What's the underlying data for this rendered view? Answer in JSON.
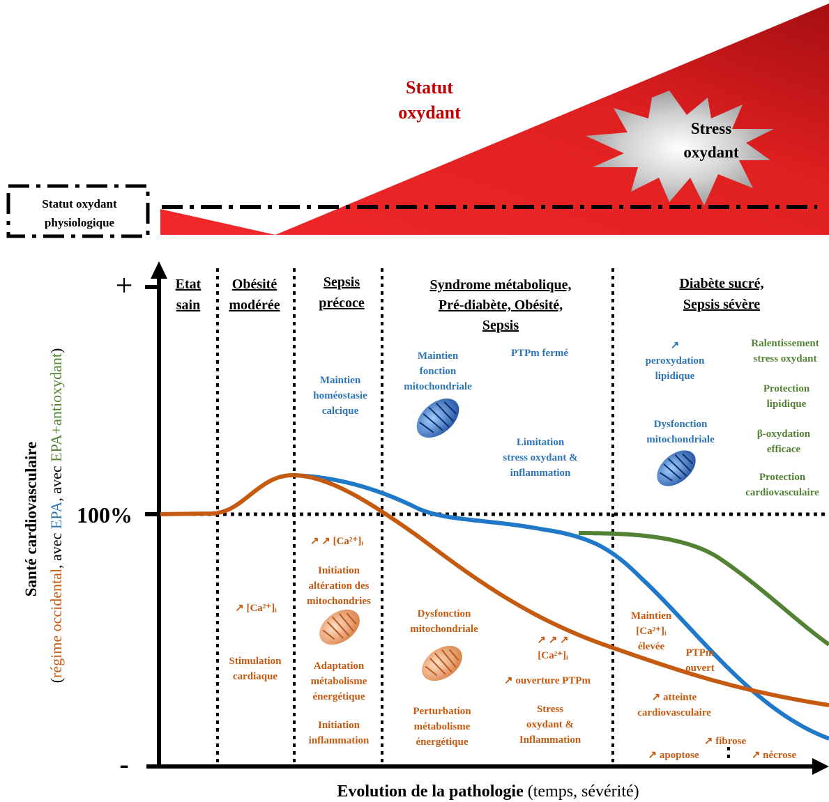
{
  "oxidant": {
    "title": [
      "Statut",
      "oxydant"
    ],
    "stress": [
      "Stress",
      "oxydant"
    ],
    "physiological": [
      "Statut oxydant",
      "physiologique"
    ]
  },
  "axes": {
    "plus": "+",
    "baseline": "100%",
    "minus": "-",
    "y_label": "Santé cardiovasculaire",
    "y_sublabel": [
      {
        "text": "(",
        "color": "#000000"
      },
      {
        "text": "régime occidental",
        "color": "#c55a11"
      },
      {
        "text": ", avec ",
        "color": "#000000"
      },
      {
        "text": "EPA",
        "color": "#2e75b6"
      },
      {
        "text": ", avec ",
        "color": "#000000"
      },
      {
        "text": "EPA+antioxydant",
        "color": "#548235"
      },
      {
        "text": ")",
        "color": "#000000"
      }
    ],
    "x_label": "Evolution de la pathologie",
    "x_sublabel": " (temps, sévérité)"
  },
  "phases": [
    {
      "lines": [
        "Etat",
        "sain"
      ]
    },
    {
      "lines": [
        "Obésité",
        "modérée"
      ]
    },
    {
      "lines": [
        "Sepsis",
        "précoce"
      ]
    },
    {
      "lines": [
        "Syndrome métabolique,",
        "Pré-diabète, Obésité,",
        "Sepsis"
      ]
    },
    {
      "lines": [
        "Diabète sucré,",
        "Sepsis sévère"
      ]
    }
  ],
  "annotations": [
    {
      "color": "#2e75b6",
      "items": [
        {
          "lines": [
            "Maintien",
            "homéostasie",
            "calcique"
          ]
        },
        {
          "lines": [
            "Maintien",
            "fonction",
            "mitochondriale"
          ]
        },
        {
          "lines": [
            "PTPm fermé"
          ]
        },
        {
          "lines": [
            "Limitation",
            "stress oxydant &",
            "inflammation"
          ]
        },
        {
          "lines": [
            "↗",
            "peroxydation",
            "lipidique"
          ]
        },
        {
          "lines": [
            "Dysfonction",
            "mitochondriale"
          ]
        }
      ]
    },
    {
      "color": "#548235",
      "items": [
        {
          "lines": [
            "Ralentissement",
            "stress oxydant"
          ]
        },
        {
          "lines": [
            "Protection",
            "lipidique"
          ]
        },
        {
          "lines": [
            "β-oxydation",
            "efficace"
          ]
        },
        {
          "lines": [
            "Protection",
            "cardiovasculaire"
          ]
        }
      ]
    },
    {
      "color": "#c55a11",
      "items": [
        {
          "lines": [
            "↗ ↗ [Ca²⁺]ᵢ"
          ]
        },
        {
          "lines": [
            "Initiation",
            "altération des",
            "mitochondries"
          ]
        },
        {
          "lines": [
            "Adaptation",
            "métabolisme",
            "énergétique"
          ]
        },
        {
          "lines": [
            "Initiation",
            "inflammation"
          ]
        },
        {
          "lines": [
            "↗ [Ca²⁺]ᵢ"
          ]
        },
        {
          "lines": [
            "Stimulation",
            "cardiaque"
          ]
        },
        {
          "lines": [
            "Dysfonction",
            "mitochondriale"
          ]
        },
        {
          "lines": [
            "Perturbation",
            "métabolisme",
            "énergétique"
          ]
        },
        {
          "lines": [
            "↗ ↗ ↗",
            "[Ca²⁺]ᵢ"
          ]
        },
        {
          "lines": [
            "↗ ouverture PTPm"
          ]
        },
        {
          "lines": [
            "Stress",
            "oxydant &",
            "Inflammation"
          ]
        },
        {
          "lines": [
            "Maintien",
            "[Ca²⁺]ᵢ",
            "élevée"
          ]
        },
        {
          "lines": [
            "PTPm",
            "ouvert"
          ]
        },
        {
          "lines": [
            "↗ atteinte",
            "cardiovasculaire"
          ]
        },
        {
          "lines": [
            "↗ fibrose"
          ]
        },
        {
          "lines": [
            "↗ apoptose"
          ]
        },
        {
          "lines": [
            "↗ nécrose"
          ]
        }
      ]
    }
  ]
}
